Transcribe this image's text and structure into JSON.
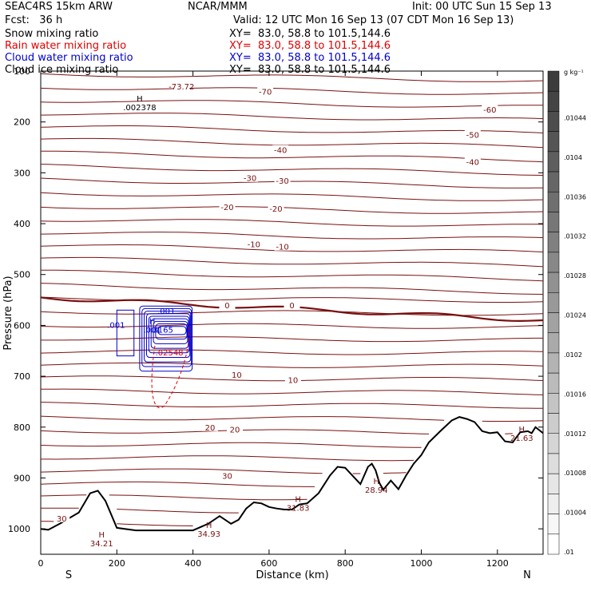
{
  "header": {
    "model": "SEAC4RS 15km ARW",
    "center": "NCAR/MMM",
    "init": "Init: 00 UTC Sun 15 Sep 13",
    "fcst": "Fcst:   36 h",
    "valid": "Valid: 12 UTC Mon 16 Sep 13 (07 CDT Mon 16 Sep 13)"
  },
  "fields": [
    {
      "name": "Snow mixing ratio",
      "xy": "XY=  83.0, 58.8 to 101.5,144.6",
      "color": "#000000"
    },
    {
      "name": "Rain water mixing ratio",
      "xy": "XY=  83.0, 58.8 to 101.5,144.6",
      "color": "#e00000"
    },
    {
      "name": "Cloud water mixing ratio",
      "xy": "XY=  83.0, 58.8 to 101.5,144.6",
      "color": "#0000cc"
    },
    {
      "name": "Cloud ice mixing ratio",
      "xy": "XY=  83.0, 58.8 to 101.5,144.6",
      "color": "#000000"
    }
  ],
  "chart_data": {
    "type": "contour",
    "xlabel": "Distance (km)",
    "ylabel": "Pressure (hPa)",
    "xlim": [
      0,
      1320
    ],
    "ylim": [
      1050,
      100
    ],
    "x_ticks": [
      0,
      200,
      400,
      600,
      800,
      1000,
      1200
    ],
    "y_ticks": [
      100,
      200,
      300,
      400,
      500,
      600,
      700,
      800,
      900,
      1000
    ],
    "direction_labels": {
      "left": "S",
      "right": "N"
    },
    "colorbar": {
      "unit": "g kg⁻¹",
      "labels": [
        "",
        ".01044",
        ".0104",
        ".01036",
        ".01032",
        ".01028",
        ".01024",
        ".0102",
        ".01016",
        ".01012",
        ".01008",
        ".01004",
        ".01"
      ]
    },
    "temperature_color": "#7a1010",
    "temperature_contour_labels": [
      {
        "label": "-73.72",
        "x": 370,
        "p": 130
      },
      {
        "label": "-70",
        "x": 590,
        "p": 140
      },
      {
        "label": "-60",
        "x": 1180,
        "p": 175
      },
      {
        "label": "-50",
        "x": 1135,
        "p": 225
      },
      {
        "label": "-40",
        "x": 630,
        "p": 255
      },
      {
        "label": "-40",
        "x": 1135,
        "p": 278
      },
      {
        "label": "-30",
        "x": 550,
        "p": 310
      },
      {
        "label": "-30",
        "x": 635,
        "p": 315
      },
      {
        "label": "-20",
        "x": 490,
        "p": 367
      },
      {
        "label": "-20",
        "x": 618,
        "p": 370
      },
      {
        "label": "-10",
        "x": 560,
        "p": 440
      },
      {
        "label": "-10",
        "x": 635,
        "p": 445
      },
      {
        "label": "0",
        "x": 490,
        "p": 560
      },
      {
        "label": "0",
        "x": 660,
        "p": 560
      },
      {
        "label": "10",
        "x": 515,
        "p": 697
      },
      {
        "label": "10",
        "x": 663,
        "p": 707
      },
      {
        "label": "20",
        "x": 445,
        "p": 800
      },
      {
        "label": "20",
        "x": 510,
        "p": 804
      },
      {
        "label": "30",
        "x": 490,
        "p": 895
      },
      {
        "label": "30",
        "x": 55,
        "p": 979
      }
    ],
    "highs": [
      {
        "label": "H",
        "value": ".002378",
        "x": 260,
        "p": 160
      },
      {
        "label": "H",
        "value": ".001",
        "x": 293,
        "p": 597
      },
      {
        "label": "H",
        "value": "34.21",
        "x": 160,
        "p": 1017
      },
      {
        "label": "H",
        "value": "34.93",
        "x": 442,
        "p": 998
      },
      {
        "label": "H",
        "value": "31.83",
        "x": 676,
        "p": 947
      },
      {
        "label": "H",
        "value": "28.94",
        "x": 882,
        "p": 912
      },
      {
        "label": "H",
        "value": "21.63",
        "x": 1264,
        "p": 810
      }
    ],
    "cloud_water_labels": [
      {
        "label": ".001",
        "x": 330,
        "p": 577
      },
      {
        "label": ".001",
        "x": 198,
        "p": 605
      },
      {
        "label": ".3165",
        "x": 318,
        "p": 614
      }
    ],
    "rain_labels": [
      {
        "label": ".02548",
        "x": 338,
        "p": 659
      }
    ],
    "terrain": {
      "x": [
        0,
        20,
        50,
        100,
        130,
        150,
        170,
        200,
        250,
        300,
        350,
        400,
        440,
        470,
        500,
        520,
        540,
        560,
        580,
        600,
        620,
        640,
        660,
        680,
        700,
        730,
        760,
        780,
        800,
        820,
        840,
        860,
        870,
        880,
        890,
        900,
        920,
        940,
        960,
        980,
        1000,
        1020,
        1050,
        1080,
        1100,
        1120,
        1140,
        1160,
        1180,
        1200,
        1220,
        1240,
        1260,
        1280,
        1290,
        1300,
        1320
      ],
      "p": [
        1000,
        1002,
        990,
        968,
        930,
        925,
        945,
        998,
        1003,
        1003,
        1003,
        1003,
        990,
        975,
        990,
        982,
        960,
        948,
        950,
        957,
        960,
        962,
        962,
        952,
        950,
        930,
        895,
        878,
        880,
        896,
        912,
        878,
        872,
        885,
        910,
        923,
        905,
        922,
        895,
        872,
        855,
        830,
        808,
        787,
        780,
        784,
        790,
        808,
        812,
        810,
        828,
        830,
        810,
        808,
        812,
        800,
        812
      ]
    }
  }
}
